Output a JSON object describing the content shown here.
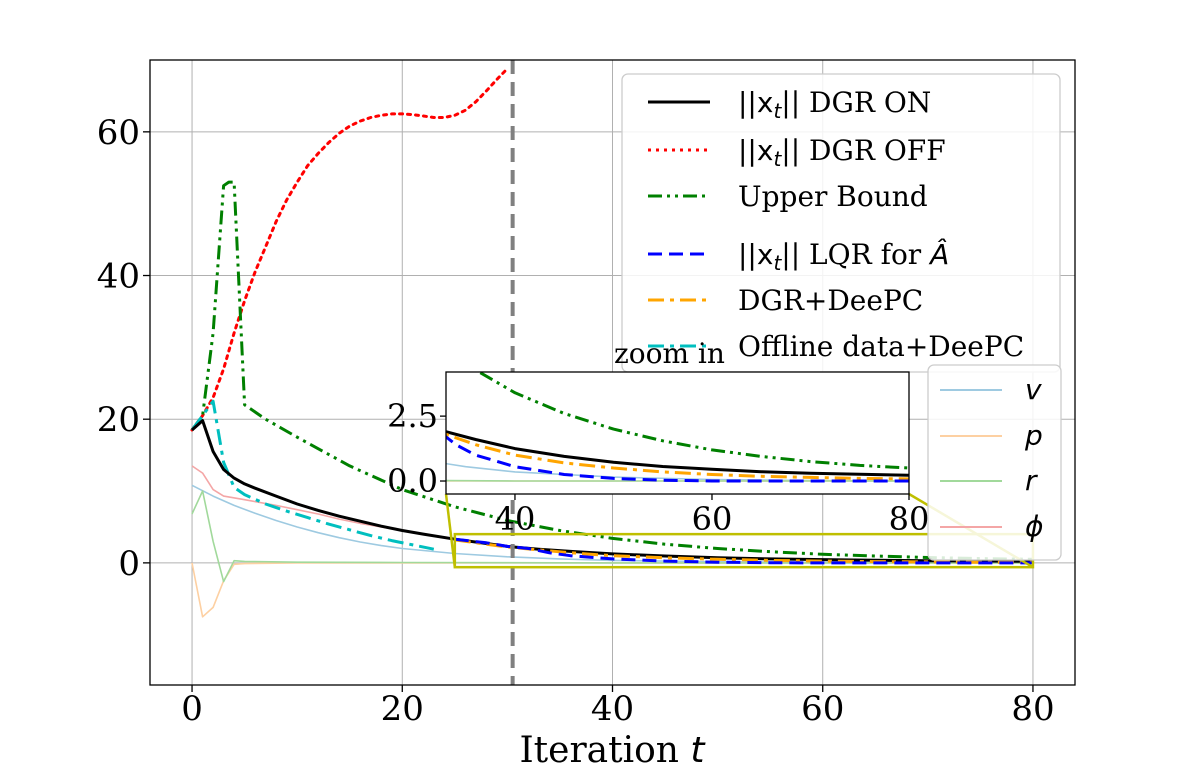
{
  "chart_data": {
    "type": "line",
    "xlabel": "Iteration t",
    "ylabel": "",
    "xlim": [
      -4,
      84
    ],
    "ylim": [
      -17,
      70
    ],
    "xticks": [
      0,
      20,
      40,
      60,
      80
    ],
    "yticks": [
      0,
      20,
      40,
      60
    ],
    "grid": true,
    "vline": {
      "x": 30.5,
      "color": "#808080"
    },
    "annotation": "zoom in",
    "series": [
      {
        "key": "dgr_on",
        "name": "||x_t|| DGR ON",
        "color": "#000000",
        "style": "solid",
        "width": 3,
        "x": [
          0,
          1,
          2,
          3,
          4,
          5,
          6,
          8,
          10,
          12,
          14,
          16,
          18,
          20,
          22,
          25,
          28,
          30,
          33,
          36,
          40,
          45,
          50,
          55,
          60,
          65,
          70,
          75,
          80
        ],
        "y": [
          18.5,
          19.8,
          15.5,
          13,
          11.8,
          11.0,
          10.4,
          9.3,
          8.2,
          7.3,
          6.5,
          5.8,
          5.1,
          4.5,
          4.0,
          3.3,
          2.7,
          2.3,
          1.9,
          1.6,
          1.25,
          0.95,
          0.72,
          0.56,
          0.45,
          0.36,
          0.3,
          0.26,
          0.22
        ]
      },
      {
        "key": "dgr_off",
        "name": "||x_t|| DGR OFF",
        "color": "#ff0000",
        "style": "dotted",
        "width": 3,
        "x": [
          0,
          1,
          2,
          3,
          4,
          5,
          6,
          7,
          8,
          9,
          10,
          11,
          12,
          13,
          14,
          15,
          16,
          17,
          18,
          19,
          20,
          21,
          22,
          23,
          24,
          25,
          26,
          27,
          28,
          29,
          30
        ],
        "y": [
          18.5,
          20.5,
          23,
          27,
          32,
          36.5,
          40.5,
          44,
          47.5,
          50.5,
          53,
          55.3,
          57,
          58.5,
          59.8,
          60.8,
          61.5,
          62,
          62.3,
          62.5,
          62.5,
          62.4,
          62.2,
          62.0,
          62.0,
          62.3,
          63,
          64.2,
          65.7,
          67.3,
          68.8
        ]
      },
      {
        "key": "upper",
        "name": "Upper Bound",
        "color": "#008000",
        "style": "dashdotdot",
        "width": 3,
        "x": [
          0,
          1,
          2,
          3,
          3.5,
          4,
          5,
          7,
          10,
          15,
          20,
          25,
          30,
          35,
          40,
          45,
          50,
          55,
          60,
          65,
          70,
          75,
          80
        ],
        "y": [
          18.5,
          20.5,
          32,
          52.5,
          53,
          53,
          22,
          20,
          17.5,
          13.5,
          10.2,
          7.8,
          5.9,
          4.5,
          3.4,
          2.6,
          2.0,
          1.55,
          1.2,
          0.95,
          0.75,
          0.6,
          0.5
        ]
      },
      {
        "key": "lqr",
        "name": "||x_t|| LQR for Â",
        "color": "#0000ff",
        "style": "dashed",
        "width": 3,
        "x": [
          25,
          28,
          30,
          32,
          34,
          36,
          40,
          45,
          50,
          55,
          60,
          65,
          70,
          75,
          80
        ],
        "y": [
          3.3,
          2.8,
          2.3,
          2.0,
          1.4,
          1.0,
          0.55,
          0.25,
          0.1,
          0.03,
          0.0,
          0.0,
          0.0,
          0.0,
          0.0
        ]
      },
      {
        "key": "dgr_deepc",
        "name": "DGR+DeePC",
        "color": "#ffa500",
        "style": "dashdot",
        "width": 3,
        "x": [
          25,
          28,
          30,
          33,
          36,
          40,
          45,
          50,
          55,
          60,
          65,
          70,
          75,
          80
        ],
        "y": [
          3.2,
          2.6,
          2.2,
          1.8,
          1.4,
          1.0,
          0.7,
          0.5,
          0.35,
          0.25,
          0.18,
          0.14,
          0.1,
          0.08
        ]
      },
      {
        "key": "offline",
        "name": "Offline data+DeePC",
        "color": "#00bfbf",
        "style": "dashdot",
        "width": 3,
        "x": [
          0,
          1,
          2,
          3,
          4,
          5,
          7,
          9,
          11,
          13,
          15,
          17,
          19,
          21,
          23
        ],
        "y": [
          18.5,
          20.5,
          22.5,
          14,
          10.5,
          9.5,
          8.2,
          7.2,
          6.3,
          5.4,
          4.6,
          3.8,
          3.1,
          2.5,
          1.9
        ]
      },
      {
        "key": "v",
        "name": "v",
        "color": "#9ecae1",
        "style": "solid",
        "width": 1.6,
        "x": [
          0,
          2,
          4,
          6,
          8,
          10,
          12,
          14,
          16,
          18,
          20,
          25,
          30,
          35,
          40,
          50,
          60,
          70,
          80
        ],
        "y": [
          10.8,
          9.3,
          8.0,
          6.9,
          5.9,
          5.0,
          4.2,
          3.5,
          2.9,
          2.4,
          2.0,
          1.3,
          0.85,
          0.55,
          0.35,
          0.15,
          0.06,
          0.02,
          0.0
        ]
      },
      {
        "key": "p",
        "name": "p",
        "color": "#fdd0a2",
        "style": "solid",
        "width": 1.6,
        "x": [
          0,
          1,
          2,
          3,
          4,
          5,
          10,
          20,
          40,
          80
        ],
        "y": [
          0,
          -7.5,
          -6.2,
          -2.5,
          -0.2,
          -0.1,
          0,
          0,
          0,
          0
        ]
      },
      {
        "key": "r",
        "name": "r",
        "color": "#a1d99b",
        "style": "solid",
        "width": 1.6,
        "x": [
          0,
          1,
          2,
          3,
          4,
          5,
          10,
          20,
          40,
          80
        ],
        "y": [
          6.8,
          10.0,
          3.0,
          -2.6,
          0.3,
          0.2,
          0.1,
          0.05,
          0,
          0
        ]
      },
      {
        "key": "phi",
        "name": "ϕ",
        "color": "#f4a6a6",
        "style": "solid",
        "width": 1.6,
        "x": [
          0,
          1,
          2,
          3,
          5,
          8,
          10,
          12,
          14,
          16,
          18,
          20,
          22,
          24
        ],
        "y": [
          13.5,
          12.5,
          10.2,
          9.3,
          8.8,
          8.0,
          7.4,
          6.8,
          6.1,
          5.5,
          5.0,
          4.5,
          4.0,
          3.5
        ]
      }
    ],
    "legend_main": [
      "dgr_on",
      "dgr_off",
      "upper",
      "lqr",
      "dgr_deepc",
      "offline"
    ],
    "legend_states": [
      "v",
      "p",
      "r",
      "phi"
    ],
    "inset": {
      "xlim": [
        33,
        80
      ],
      "ylim": [
        -0.5,
        4.2
      ],
      "xticks": [
        40,
        60,
        80
      ],
      "yticks": [
        0.0,
        2.5
      ],
      "ytick_labels": [
        "0.0",
        "2.5"
      ],
      "zoom_region": {
        "x": [
          25,
          80
        ],
        "y": [
          -0.6,
          4
        ]
      }
    }
  },
  "legend_labels": {
    "dgr_on": {
      "norm": "||x",
      "sub": "t",
      "rest": "|| DGR ON"
    },
    "dgr_off": {
      "norm": "||x",
      "sub": "t",
      "rest": "|| DGR OFF"
    },
    "upper": "Upper Bound",
    "lqr": {
      "norm": "||x",
      "sub": "t",
      "rest": "|| LQR for ",
      "hat": "Â"
    },
    "dgr_deepc": "DGR+DeePC",
    "offline": "Offline data+DeePC"
  },
  "xlabel_parts": {
    "text": "Iteration ",
    "var": "t"
  },
  "state_labels": [
    "v",
    "p",
    "r",
    "ϕ"
  ]
}
